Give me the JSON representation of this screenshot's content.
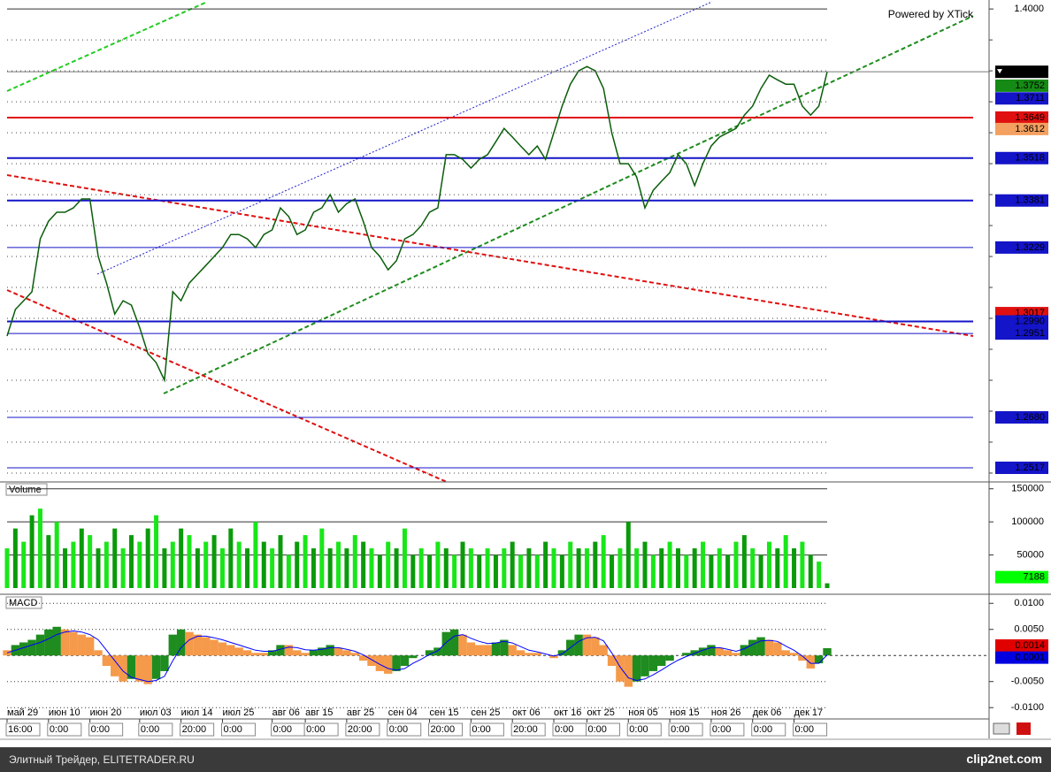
{
  "chart_data": [
    {
      "type": "line",
      "watermark": "Powered by XTick",
      "color": "#0b5d0b",
      "values": [
        1.2943,
        1.3029,
        1.3057,
        1.3086,
        1.3257,
        1.3314,
        1.3343,
        1.3343,
        1.3357,
        1.3386,
        1.3386,
        1.32,
        1.3114,
        1.3014,
        1.3057,
        1.3043,
        1.2971,
        1.2886,
        1.2857,
        1.28,
        1.3086,
        1.3057,
        1.3114,
        1.3143,
        1.3171,
        1.32,
        1.3229,
        1.3271,
        1.3271,
        1.3257,
        1.3229,
        1.3271,
        1.3286,
        1.3357,
        1.3329,
        1.3271,
        1.3286,
        1.3343,
        1.3357,
        1.34,
        1.3343,
        1.3371,
        1.3386,
        1.3314,
        1.3229,
        1.32,
        1.3157,
        1.3186,
        1.3257,
        1.3271,
        1.33,
        1.3343,
        1.3357,
        1.3529,
        1.3529,
        1.3514,
        1.3486,
        1.3514,
        1.3529,
        1.3571,
        1.3614,
        1.3586,
        1.3557,
        1.3529,
        1.3557,
        1.3514,
        1.36,
        1.3686,
        1.3757,
        1.38,
        1.3814,
        1.38,
        1.3743,
        1.36,
        1.35,
        1.35,
        1.3457,
        1.3357,
        1.3414,
        1.3443,
        1.3471,
        1.3529,
        1.35,
        1.3429,
        1.35,
        1.3557,
        1.3586,
        1.36,
        1.3614,
        1.3657,
        1.3686,
        1.3743,
        1.3786,
        1.3771,
        1.3757,
        1.3757,
        1.3686,
        1.3657,
        1.3686,
        1.3797
      ],
      "ylim": [
        1.2477,
        1.4029
      ],
      "yticks": [
        {
          "value": 1.4,
          "label": "1.4000"
        }
      ],
      "ygrid": [
        1.25,
        1.26,
        1.27,
        1.28,
        1.29,
        1.3,
        1.31,
        1.32,
        1.33,
        1.34,
        1.35,
        1.36,
        1.37,
        1.38,
        1.39
      ],
      "levels": [
        {
          "value": 1.3752,
          "color": "#158a15",
          "line": "none"
        },
        {
          "value": 1.3711,
          "color": "#1414c8",
          "line": "none"
        },
        {
          "value": 1.3649,
          "color": "#e01010",
          "line": "thick"
        },
        {
          "value": 1.3612,
          "color": "#f4a060",
          "line": "none"
        },
        {
          "value": 1.3518,
          "color": "#1414c8",
          "line": "thick"
        },
        {
          "value": 1.3381,
          "color": "#1414c8",
          "line": "thick"
        },
        {
          "value": 1.3229,
          "color": "#1414c8",
          "line": "thin"
        },
        {
          "value": 1.3017,
          "color": "#e01010",
          "line": "none"
        },
        {
          "value": 1.299,
          "label": "1.2990",
          "color": "#1414c8",
          "line": "thick"
        },
        {
          "value": 1.2951,
          "color": "#1414c8",
          "line": "thin"
        },
        {
          "value": 1.268,
          "label": "1.2680",
          "color": "#1414c8",
          "line": "thin"
        },
        {
          "value": 1.2517,
          "color": "#1414c8",
          "line": "thin"
        }
      ]
    },
    {
      "type": "bar",
      "title": "Volume",
      "color": "#19e619",
      "label_color": "#00ff00",
      "values": [
        60000,
        90000,
        70000,
        110000,
        120000,
        80000,
        100000,
        60000,
        70000,
        90000,
        80000,
        60000,
        70000,
        90000,
        60000,
        80000,
        70000,
        90000,
        110000,
        60000,
        70000,
        90000,
        80000,
        60000,
        70000,
        80000,
        60000,
        90000,
        70000,
        60000,
        100000,
        70000,
        60000,
        80000,
        50000,
        70000,
        80000,
        60000,
        90000,
        60000,
        70000,
        60000,
        80000,
        70000,
        60000,
        50000,
        70000,
        60000,
        90000,
        50000,
        60000,
        50000,
        70000,
        60000,
        50000,
        70000,
        60000,
        50000,
        60000,
        50000,
        60000,
        70000,
        50000,
        60000,
        50000,
        70000,
        60000,
        50000,
        70000,
        60000,
        60000,
        70000,
        80000,
        50000,
        60000,
        100000,
        60000,
        70000,
        50000,
        60000,
        70000,
        60000,
        50000,
        60000,
        70000,
        50000,
        60000,
        50000,
        70000,
        80000,
        60000,
        50000,
        70000,
        60000,
        80000,
        60000,
        70000,
        50000,
        40000,
        7188
      ],
      "ylim": [
        0,
        159000
      ],
      "yticks": [
        50000,
        100000,
        150000
      ]
    },
    {
      "type": "macd",
      "title": "MACD",
      "series": [
        {
          "up_color": "#1e8c1e",
          "down_color": "#f59a4a",
          "label_color": "#e00000",
          "values": [
            0.001,
            0.002,
            0.0025,
            0.003,
            0.004,
            0.005,
            0.0055,
            0.005,
            0.0045,
            0.004,
            0.0035,
            0.001,
            -0.002,
            -0.004,
            -0.005,
            -0.0045,
            -0.005,
            -0.0055,
            -0.0045,
            -0.003,
            0.004,
            0.005,
            0.0045,
            0.004,
            0.0035,
            0.003,
            0.0025,
            0.002,
            0.0015,
            0.001,
            0.0005,
            0.0005,
            0.001,
            0.002,
            0.002,
            0.001,
            0.0005,
            0.001,
            0.0015,
            0.002,
            0.0015,
            0.001,
            0.0005,
            -0.001,
            -0.002,
            -0.003,
            -0.0035,
            -0.003,
            -0.002,
            -0.0005,
            0,
            0.001,
            0.0015,
            0.0045,
            0.005,
            0.004,
            0.0025,
            0.002,
            0.002,
            0.0025,
            0.003,
            0.002,
            0.001,
            0.0005,
            0.0005,
            0,
            -0.0005,
            0.001,
            0.003,
            0.004,
            0.004,
            0.0035,
            0.002,
            -0.002,
            -0.005,
            -0.006,
            -0.005,
            -0.004,
            -0.003,
            -0.002,
            -0.001,
            0,
            0.0005,
            0.001,
            0.0015,
            0.002,
            0.0015,
            0.001,
            0.0005,
            0.002,
            0.003,
            0.0035,
            0.003,
            0.0025,
            0.001,
            0.0005,
            -0.001,
            -0.0025,
            -0.0015,
            0.0014
          ]
        },
        {
          "color": "#0000ff",
          "label_color": "#0000e0",
          "values": [
            0.0005,
            0.001,
            0.0015,
            0.002,
            0.0025,
            0.0032,
            0.004,
            0.0045,
            0.0047,
            0.0045,
            0.004,
            0.003,
            0.001,
            -0.001,
            -0.003,
            -0.0042,
            -0.0046,
            -0.005,
            -0.0048,
            -0.004,
            -0.001,
            0.0015,
            0.003,
            0.0037,
            0.0037,
            0.0034,
            0.003,
            0.0025,
            0.002,
            0.0015,
            0.001,
            0.0008,
            0.0008,
            0.0012,
            0.0016,
            0.0015,
            0.0011,
            0.001,
            0.0012,
            0.0015,
            0.0015,
            0.0012,
            0.0008,
            0.0001,
            -0.0008,
            -0.0017,
            -0.0025,
            -0.0028,
            -0.0025,
            -0.0015,
            -0.0007,
            0.0002,
            0.0009,
            0.0025,
            0.0037,
            0.004,
            0.0033,
            0.0027,
            0.0023,
            0.0024,
            0.0027,
            0.0024,
            0.0017,
            0.001,
            0.0007,
            0.0003,
            -0.0001,
            0.0003,
            0.0015,
            0.0027,
            0.0034,
            0.0035,
            0.0028,
            0.0005,
            -0.0022,
            -0.0043,
            -0.0048,
            -0.0045,
            -0.0037,
            -0.0028,
            -0.0018,
            -0.0009,
            -0.0002,
            0.0004,
            0.001,
            0.0015,
            0.0015,
            0.0012,
            0.0008,
            0.0013,
            0.0021,
            0.0028,
            0.0029,
            0.0027,
            0.0018,
            0.001,
            -0.0001,
            -0.0015,
            -0.0015,
            0.0001
          ]
        }
      ],
      "ylim": [
        -0.012,
        0.0114
      ],
      "yticks": [
        {
          "value": 0.01,
          "label": "0.0100"
        },
        {
          "value": 0.005,
          "label": "0.0050"
        },
        {
          "value": -0.005,
          "label": "-0.0050"
        },
        {
          "value": -0.01,
          "label": "-0.0100"
        }
      ],
      "categories": [
        "май 29",
        null,
        null,
        null,
        null,
        "июн 10",
        null,
        null,
        null,
        null,
        "июн 20",
        null,
        null,
        null,
        null,
        null,
        "июл 03",
        null,
        null,
        null,
        null,
        "июл 14",
        null,
        null,
        null,
        null,
        "июл 25",
        null,
        null,
        null,
        null,
        null,
        "авг 06",
        null,
        null,
        null,
        "авг 15",
        null,
        null,
        null,
        null,
        "авг 25",
        null,
        null,
        null,
        null,
        "сен 04",
        null,
        null,
        null,
        null,
        "сен 15",
        null,
        null,
        null,
        null,
        "сен 25",
        null,
        null,
        null,
        null,
        "окт 06",
        null,
        null,
        null,
        null,
        "окт 16",
        null,
        null,
        null,
        "окт 25",
        null,
        null,
        null,
        null,
        "ноя 05",
        null,
        null,
        null,
        null,
        "ноя 15",
        null,
        null,
        null,
        null,
        "ноя 26",
        null,
        null,
        null,
        null,
        "дек 06",
        null,
        null,
        null,
        null,
        "дек 17",
        null,
        null,
        null,
        null
      ],
      "times": [
        "16:00",
        null,
        null,
        null,
        null,
        "0:00",
        null,
        null,
        null,
        null,
        "0:00",
        null,
        null,
        null,
        null,
        null,
        "0:00",
        null,
        null,
        null,
        null,
        "20:00",
        null,
        null,
        null,
        null,
        "0:00",
        null,
        null,
        null,
        null,
        null,
        "0:00",
        null,
        null,
        null,
        "0:00",
        null,
        null,
        null,
        null,
        "20:00",
        null,
        null,
        null,
        null,
        "0:00",
        null,
        null,
        null,
        null,
        "20:00",
        null,
        null,
        null,
        null,
        "0:00",
        null,
        null,
        null,
        null,
        "20:00",
        null,
        null,
        null,
        null,
        "0:00",
        null,
        null,
        null,
        "0:00",
        null,
        null,
        null,
        null,
        "0:00",
        null,
        null,
        null,
        null,
        "0:00",
        null,
        null,
        null,
        null,
        "0:00",
        null,
        null,
        null,
        null,
        "0:00",
        null,
        null,
        null,
        null,
        "0:00",
        null,
        null,
        null,
        null
      ]
    }
  ],
  "footer": {
    "left": "Элитный Трейдер, ELITETRADER.RU",
    "right": "clip2net.com"
  }
}
